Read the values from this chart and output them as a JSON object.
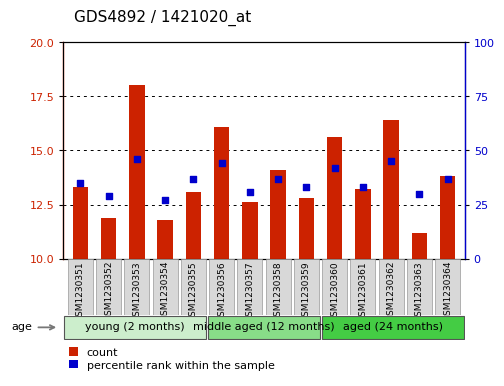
{
  "title": "GDS4892 / 1421020_at",
  "samples": [
    "GSM1230351",
    "GSM1230352",
    "GSM1230353",
    "GSM1230354",
    "GSM1230355",
    "GSM1230356",
    "GSM1230357",
    "GSM1230358",
    "GSM1230359",
    "GSM1230360",
    "GSM1230361",
    "GSM1230362",
    "GSM1230363",
    "GSM1230364"
  ],
  "count_values": [
    13.3,
    11.9,
    18.0,
    11.8,
    13.1,
    16.1,
    12.6,
    14.1,
    12.8,
    15.6,
    13.2,
    16.4,
    11.2,
    13.8
  ],
  "percentile_values": [
    35,
    29,
    46,
    27,
    37,
    44,
    31,
    37,
    33,
    42,
    33,
    45,
    30,
    37
  ],
  "bar_color": "#cc2200",
  "percentile_color": "#0000cc",
  "ylim_left": [
    10,
    20
  ],
  "ylim_right": [
    0,
    100
  ],
  "yticks_left": [
    10,
    12.5,
    15,
    17.5,
    20
  ],
  "yticks_right": [
    0,
    25,
    50,
    75,
    100
  ],
  "grid_values": [
    12.5,
    15,
    17.5
  ],
  "groups": [
    {
      "label": "young (2 months)",
      "start": 0,
      "end": 5,
      "color": "#cceecc"
    },
    {
      "label": "middle aged (12 months)",
      "start": 5,
      "end": 9,
      "color": "#88dd88"
    },
    {
      "label": "aged (24 months)",
      "start": 9,
      "end": 14,
      "color": "#44cc44"
    }
  ],
  "age_label": "age",
  "legend_count_label": "count",
  "legend_percentile_label": "percentile rank within the sample",
  "bar_width": 0.55,
  "title_fontsize": 11,
  "tick_fontsize": 8,
  "group_label_fontsize": 8,
  "sample_fontsize": 6.5
}
